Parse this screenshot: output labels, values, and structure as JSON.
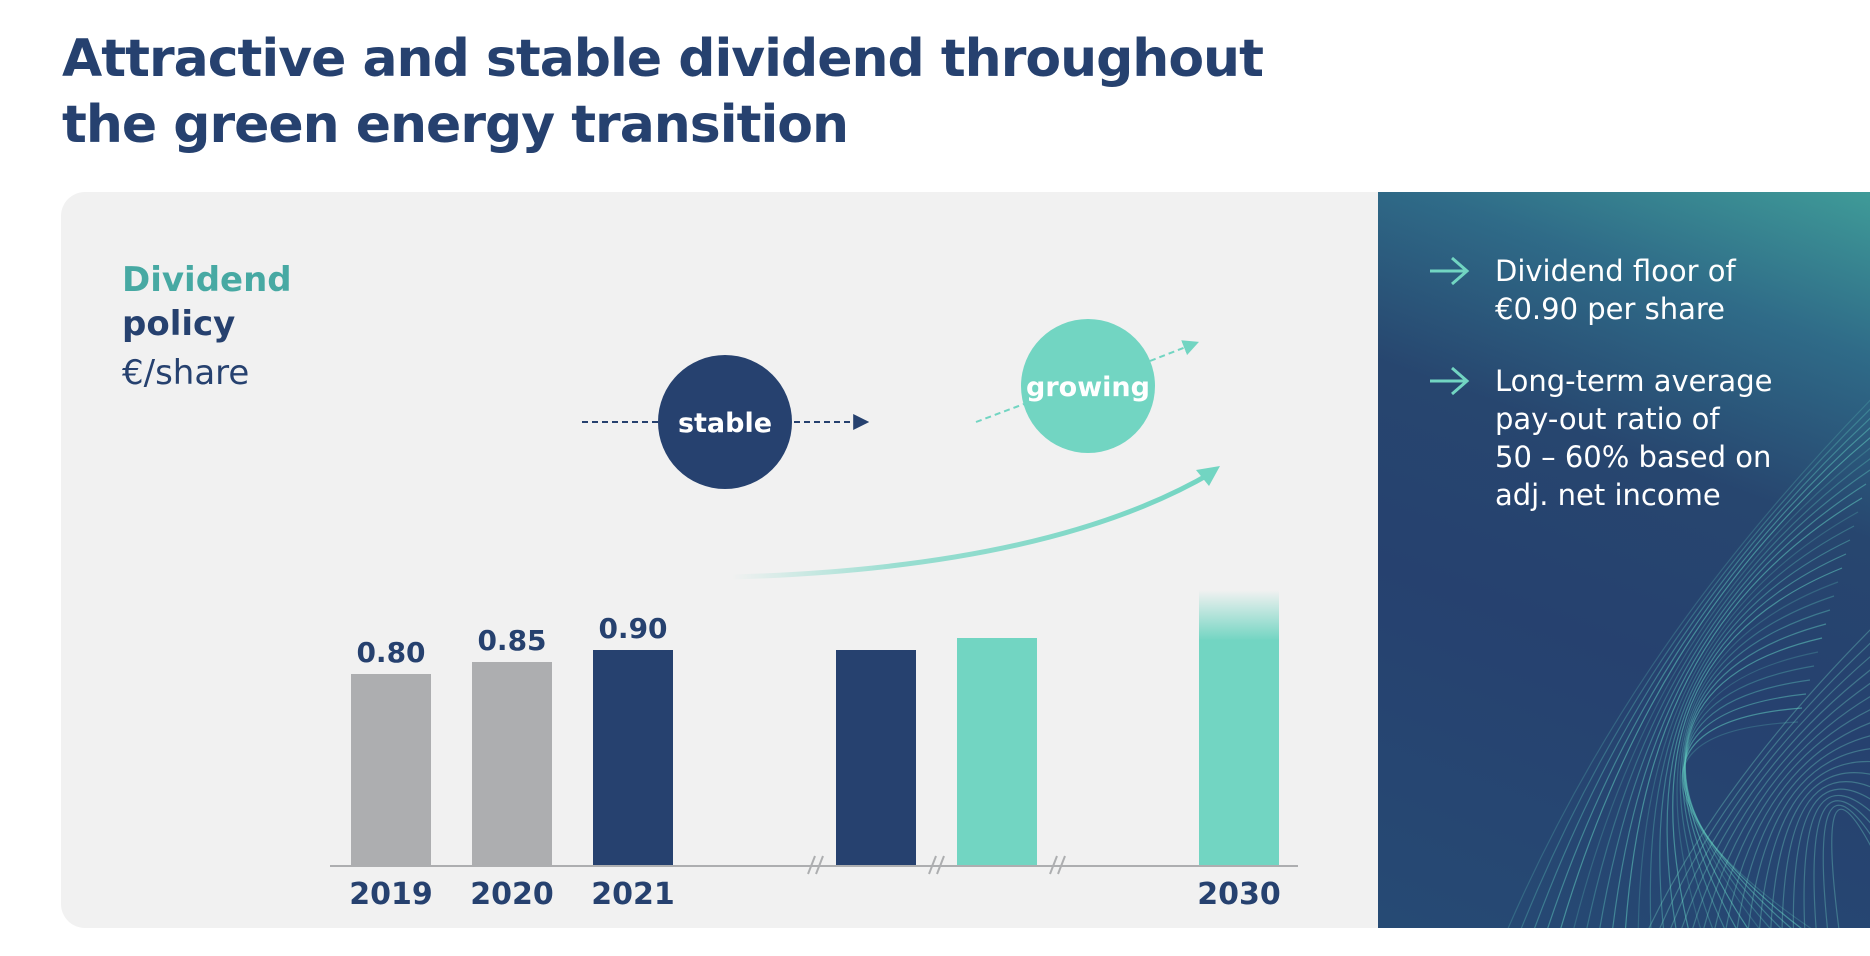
{
  "title": {
    "line1": "Attractive and stable dividend throughout",
    "line2": "the green energy transition"
  },
  "policy": {
    "line1": "Dividend",
    "line2": "policy",
    "unit": "€/share"
  },
  "badges": {
    "stable": "stable",
    "growing": "growing"
  },
  "bullets": [
    {
      "icon": "arrow-right-icon",
      "text": "Dividend floor of\n€0.90 per share"
    },
    {
      "icon": "arrow-right-icon",
      "text": "Long-term average\npay-out ratio of\n50 – 60% based on\nadj. net income"
    }
  ],
  "colors": {
    "navy": "#26416f",
    "teal": "#72d5c2",
    "grey": "#adaeb0",
    "accent_text": "#47a9a3"
  },
  "chart_data": {
    "type": "bar",
    "unit": "€/share",
    "categories": [
      "2019",
      "2020",
      "2021",
      "",
      "",
      "2030"
    ],
    "values": [
      0.8,
      0.85,
      0.9,
      0.9,
      0.95,
      1.15
    ],
    "value_labels": [
      "0.80",
      "0.85",
      "0.90",
      "",
      "",
      ""
    ],
    "bar_colors": [
      "grey",
      "grey",
      "navy",
      "navy",
      "teal",
      "teal"
    ],
    "axis_breaks": true,
    "ylim": [
      0,
      1.2
    ],
    "grid": false,
    "legend": "none"
  }
}
